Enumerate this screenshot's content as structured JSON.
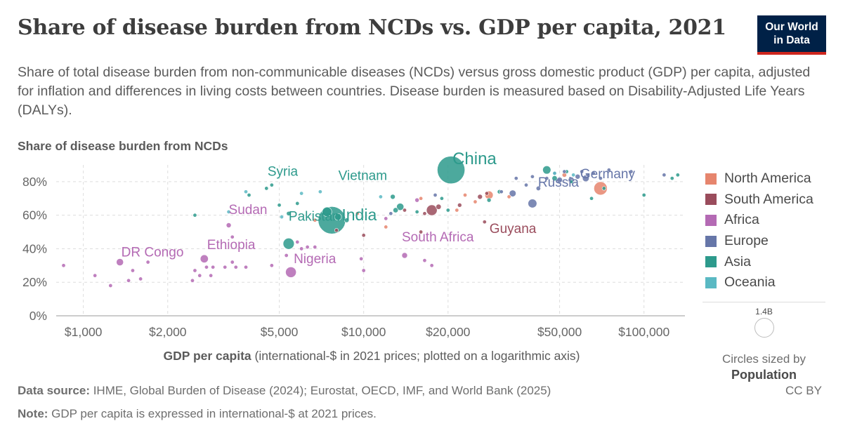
{
  "header": {
    "title": "Share of disease burden from NCDs vs. GDP per capita, 2021",
    "subtitle": "Share of total disease burden from non-communicable diseases (NCDs) versus gross domestic product (GDP) per capita, adjusted for inflation and differences in living costs between countries. Disease burden is measured based on Disability-Adjusted Life Years (DALYs).",
    "logo_line1": "Our World",
    "logo_line2": "in Data"
  },
  "footer": {
    "source_label": "Data source:",
    "source_text": " IHME, Global Burden of Disease (2024); Eurostat, OECD, IMF, and World Bank (2025)",
    "note_label": "Note:",
    "note_text": " GDP per capita is expressed in international-$ at 2021 prices.",
    "license": "CC BY"
  },
  "colors": {
    "North America": "#e6856d",
    "South America": "#9a4c5c",
    "Africa": "#b46ab4",
    "Europe": "#6676a8",
    "Asia": "#2d9a8c",
    "Oceania": "#5ab9c3"
  },
  "size_key": {
    "value": "1.4B",
    "caption": "Circles sized by",
    "variable": "Population"
  },
  "chart_data": {
    "type": "scatter",
    "y_title": "Share of disease burden from NCDs",
    "x_title": "GDP per capita",
    "x_title_note": " (international-$ in 2021 prices; plotted on a logarithmic axis)",
    "x_scale": "log",
    "xlim": [
      800,
      140000
    ],
    "ylim": [
      0,
      90
    ],
    "x_ticks": [
      1000,
      2000,
      5000,
      10000,
      20000,
      50000,
      100000
    ],
    "x_tick_labels": [
      "$1,000",
      "$2,000",
      "$5,000",
      "$10,000",
      "$20,000",
      "$50,000",
      "$100,000"
    ],
    "y_ticks": [
      0,
      20,
      40,
      60,
      80
    ],
    "y_tick_labels": [
      "0%",
      "20%",
      "40%",
      "60%",
      "80%"
    ],
    "grid": true,
    "legend_position": "right",
    "legend": [
      "North America",
      "South America",
      "Africa",
      "Europe",
      "Asia",
      "Oceania"
    ],
    "labeled_points": [
      {
        "label": "China",
        "region": "Asia",
        "x": 20500,
        "y": 87,
        "pop": 1425
      },
      {
        "label": "India",
        "region": "Asia",
        "x": 7700,
        "y": 57,
        "pop": 1408
      },
      {
        "label": "Germany",
        "region": "Europe",
        "x": 62000,
        "y": 82,
        "pop": 83
      },
      {
        "label": "Russia",
        "region": "Europe",
        "x": 40000,
        "y": 67,
        "pop": 145
      },
      {
        "label": "Vietnam",
        "region": "Asia",
        "x": 13500,
        "y": 65,
        "pop": 98
      },
      {
        "label": "Syria",
        "region": "Asia",
        "x": 4700,
        "y": 78,
        "pop": 21
      },
      {
        "label": "Sudan",
        "region": "Africa",
        "x": 3300,
        "y": 54,
        "pop": 46
      },
      {
        "label": "Guyana",
        "region": "South America",
        "x": 27000,
        "y": 56,
        "pop": 1
      },
      {
        "label": "Pakistan",
        "region": "Asia",
        "x": 5400,
        "y": 43,
        "pop": 231
      },
      {
        "label": "Ethiopia",
        "region": "Africa",
        "x": 2700,
        "y": 34,
        "pop": 120
      },
      {
        "label": "DR Congo",
        "region": "Africa",
        "x": 1350,
        "y": 32,
        "pop": 96
      },
      {
        "label": "South Africa",
        "region": "Africa",
        "x": 14000,
        "y": 36,
        "pop": 60
      },
      {
        "label": "Nigeria",
        "region": "Africa",
        "x": 5500,
        "y": 26,
        "pop": 213
      }
    ],
    "points": [
      {
        "region": "Africa",
        "x": 850,
        "y": 30,
        "pop": 12
      },
      {
        "region": "Africa",
        "x": 1100,
        "y": 24,
        "pop": 15
      },
      {
        "region": "Africa",
        "x": 1250,
        "y": 18,
        "pop": 6
      },
      {
        "region": "Africa",
        "x": 1450,
        "y": 21,
        "pop": 20
      },
      {
        "region": "Africa",
        "x": 1500,
        "y": 27,
        "pop": 18
      },
      {
        "region": "Africa",
        "x": 1600,
        "y": 22,
        "pop": 15
      },
      {
        "region": "Africa",
        "x": 1700,
        "y": 32,
        "pop": 12
      },
      {
        "region": "Africa",
        "x": 2450,
        "y": 21,
        "pop": 10
      },
      {
        "region": "Africa",
        "x": 2500,
        "y": 27,
        "pop": 8
      },
      {
        "region": "Africa",
        "x": 2600,
        "y": 24,
        "pop": 14
      },
      {
        "region": "Africa",
        "x": 2750,
        "y": 29,
        "pop": 20
      },
      {
        "region": "Africa",
        "x": 2850,
        "y": 24,
        "pop": 9
      },
      {
        "region": "Africa",
        "x": 2900,
        "y": 29,
        "pop": 18
      },
      {
        "region": "Africa",
        "x": 3200,
        "y": 29,
        "pop": 16
      },
      {
        "region": "Africa",
        "x": 3400,
        "y": 32,
        "pop": 13
      },
      {
        "region": "Africa",
        "x": 3500,
        "y": 29,
        "pop": 10
      },
      {
        "region": "Africa",
        "x": 3800,
        "y": 29,
        "pop": 12
      },
      {
        "region": "Africa",
        "x": 3400,
        "y": 47,
        "pop": 9
      },
      {
        "region": "Africa",
        "x": 4700,
        "y": 30,
        "pop": 8
      },
      {
        "region": "Africa",
        "x": 5300,
        "y": 36,
        "pop": 5
      },
      {
        "region": "Africa",
        "x": 5800,
        "y": 44,
        "pop": 15
      },
      {
        "region": "Africa",
        "x": 6000,
        "y": 40,
        "pop": 10
      },
      {
        "region": "Africa",
        "x": 6300,
        "y": 41,
        "pop": 8
      },
      {
        "region": "Africa",
        "x": 6700,
        "y": 41,
        "pop": 6
      },
      {
        "region": "Africa",
        "x": 9800,
        "y": 34,
        "pop": 7
      },
      {
        "region": "Africa",
        "x": 10000,
        "y": 27,
        "pop": 6
      },
      {
        "region": "Africa",
        "x": 16500,
        "y": 33,
        "pop": 4
      },
      {
        "region": "Africa",
        "x": 17500,
        "y": 30,
        "pop": 4
      },
      {
        "region": "Africa",
        "x": 12000,
        "y": 58,
        "pop": 3
      },
      {
        "region": "Africa",
        "x": 15500,
        "y": 69,
        "pop": 35
      },
      {
        "region": "Asia",
        "x": 2500,
        "y": 60,
        "pop": 8
      },
      {
        "region": "Asia",
        "x": 3900,
        "y": 72,
        "pop": 7
      },
      {
        "region": "Asia",
        "x": 4500,
        "y": 76,
        "pop": 5
      },
      {
        "region": "Asia",
        "x": 5000,
        "y": 66,
        "pop": 6
      },
      {
        "region": "Asia",
        "x": 5400,
        "y": 61,
        "pop": 36
      },
      {
        "region": "Asia",
        "x": 5800,
        "y": 67,
        "pop": 10
      },
      {
        "region": "Asia",
        "x": 7400,
        "y": 62,
        "pop": 170
      },
      {
        "region": "Asia",
        "x": 8100,
        "y": 59,
        "pop": 90
      },
      {
        "region": "Asia",
        "x": 8700,
        "y": 57,
        "pop": 40
      },
      {
        "region": "Asia",
        "x": 12700,
        "y": 71,
        "pop": 45
      },
      {
        "region": "Asia",
        "x": 13000,
        "y": 63,
        "pop": 50
      },
      {
        "region": "Asia",
        "x": 15500,
        "y": 62,
        "pop": 20
      },
      {
        "region": "Asia",
        "x": 19000,
        "y": 70,
        "pop": 8
      },
      {
        "region": "Asia",
        "x": 20000,
        "y": 63,
        "pop": 10
      },
      {
        "region": "Asia",
        "x": 28000,
        "y": 69,
        "pop": 34
      },
      {
        "region": "Asia",
        "x": 30500,
        "y": 74,
        "pop": 33
      },
      {
        "region": "Asia",
        "x": 45000,
        "y": 87,
        "pop": 125
      },
      {
        "region": "Asia",
        "x": 48000,
        "y": 82,
        "pop": 52
      },
      {
        "region": "Asia",
        "x": 53000,
        "y": 86,
        "pop": 24
      },
      {
        "region": "Asia",
        "x": 55000,
        "y": 80,
        "pop": 10
      },
      {
        "region": "Asia",
        "x": 65000,
        "y": 70,
        "pop": 9
      },
      {
        "region": "Asia",
        "x": 72000,
        "y": 76,
        "pop": 3
      },
      {
        "region": "Asia",
        "x": 100000,
        "y": 72,
        "pop": 3
      },
      {
        "region": "Asia",
        "x": 126000,
        "y": 82,
        "pop": 6
      },
      {
        "region": "Asia",
        "x": 132000,
        "y": 84,
        "pop": 3
      },
      {
        "region": "North America",
        "x": 6700,
        "y": 57,
        "pop": 8
      },
      {
        "region": "North America",
        "x": 9500,
        "y": 61,
        "pop": 12
      },
      {
        "region": "North America",
        "x": 12000,
        "y": 53,
        "pop": 3
      },
      {
        "region": "North America",
        "x": 16000,
        "y": 70,
        "pop": 3
      },
      {
        "region": "North America",
        "x": 21500,
        "y": 63,
        "pop": 5
      },
      {
        "region": "North America",
        "x": 23000,
        "y": 72,
        "pop": 3
      },
      {
        "region": "North America",
        "x": 25000,
        "y": 68,
        "pop": 4
      },
      {
        "region": "North America",
        "x": 28000,
        "y": 72,
        "pop": 127
      },
      {
        "region": "North America",
        "x": 33000,
        "y": 71,
        "pop": 3
      },
      {
        "region": "North America",
        "x": 52000,
        "y": 84,
        "pop": 38
      },
      {
        "region": "North America",
        "x": 70000,
        "y": 76,
        "pop": 332
      },
      {
        "region": "South America",
        "x": 8000,
        "y": 51,
        "pop": 8
      },
      {
        "region": "South America",
        "x": 10000,
        "y": 48,
        "pop": 11
      },
      {
        "region": "South America",
        "x": 14000,
        "y": 63,
        "pop": 14
      },
      {
        "region": "South America",
        "x": 16000,
        "y": 50,
        "pop": 4
      },
      {
        "region": "South America",
        "x": 16500,
        "y": 61,
        "pop": 18
      },
      {
        "region": "South America",
        "x": 17500,
        "y": 63,
        "pop": 214
      },
      {
        "region": "South America",
        "x": 18500,
        "y": 65,
        "pop": 51
      },
      {
        "region": "South America",
        "x": 22000,
        "y": 66,
        "pop": 33
      },
      {
        "region": "South America",
        "x": 26000,
        "y": 71,
        "pop": 45
      },
      {
        "region": "South America",
        "x": 27500,
        "y": 73,
        "pop": 19
      },
      {
        "region": "Europe",
        "x": 12500,
        "y": 61,
        "pop": 4
      },
      {
        "region": "Europe",
        "x": 18000,
        "y": 72,
        "pop": 8
      },
      {
        "region": "Europe",
        "x": 34000,
        "y": 73,
        "pop": 85
      },
      {
        "region": "Europe",
        "x": 35000,
        "y": 82,
        "pop": 7
      },
      {
        "region": "Europe",
        "x": 38000,
        "y": 78,
        "pop": 10
      },
      {
        "region": "Europe",
        "x": 40000,
        "y": 83,
        "pop": 19
      },
      {
        "region": "Europe",
        "x": 42000,
        "y": 76,
        "pop": 38
      },
      {
        "region": "Europe",
        "x": 45000,
        "y": 82,
        "pop": 10
      },
      {
        "region": "Europe",
        "x": 48000,
        "y": 85,
        "pop": 20
      },
      {
        "region": "Europe",
        "x": 50000,
        "y": 81,
        "pop": 60
      },
      {
        "region": "Europe",
        "x": 52000,
        "y": 86,
        "pop": 10
      },
      {
        "region": "Europe",
        "x": 55000,
        "y": 81,
        "pop": 67
      },
      {
        "region": "Europe",
        "x": 58000,
        "y": 83,
        "pop": 47
      },
      {
        "region": "Europe",
        "x": 60000,
        "y": 86,
        "pop": 9
      },
      {
        "region": "Europe",
        "x": 63000,
        "y": 84,
        "pop": 11
      },
      {
        "region": "Europe",
        "x": 66000,
        "y": 85,
        "pop": 17
      },
      {
        "region": "Europe",
        "x": 70000,
        "y": 82,
        "pop": 6
      },
      {
        "region": "Europe",
        "x": 75000,
        "y": 87,
        "pop": 5
      },
      {
        "region": "Europe",
        "x": 90000,
        "y": 86,
        "pop": 8
      },
      {
        "region": "Europe",
        "x": 118000,
        "y": 84,
        "pop": 5
      },
      {
        "region": "Europe",
        "x": 31000,
        "y": 74,
        "pop": 3
      },
      {
        "region": "Oceania",
        "x": 3300,
        "y": 62,
        "pop": 6
      },
      {
        "region": "Oceania",
        "x": 3800,
        "y": 74,
        "pop": 3
      },
      {
        "region": "Oceania",
        "x": 5100,
        "y": 59,
        "pop": 3
      },
      {
        "region": "Oceania",
        "x": 6000,
        "y": 73,
        "pop": 3
      },
      {
        "region": "Oceania",
        "x": 7000,
        "y": 74,
        "pop": 3
      },
      {
        "region": "Oceania",
        "x": 11500,
        "y": 71,
        "pop": 3
      },
      {
        "region": "Oceania",
        "x": 56000,
        "y": 84,
        "pop": 26
      },
      {
        "region": "Oceania",
        "x": 48000,
        "y": 85,
        "pop": 5
      }
    ]
  }
}
